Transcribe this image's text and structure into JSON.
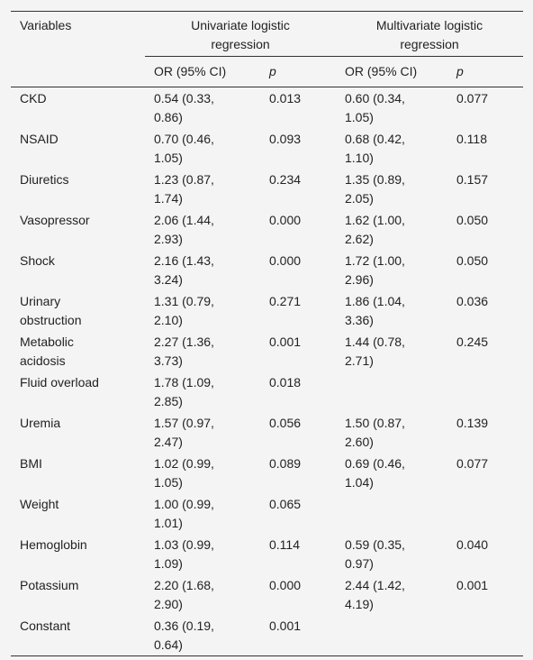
{
  "table": {
    "header": {
      "variables": "Variables",
      "univariate": "Univariate logistic regression",
      "multivariate": "Multivariate logistic regression",
      "subheaders": [
        "OR (95% CI)",
        "p",
        "OR (95% CI)",
        "p"
      ]
    },
    "rows": [
      [
        "CKD",
        "0.54 (0.33, 0.86)",
        "0.013",
        "0.60 (0.34, 1.05)",
        "0.077"
      ],
      [
        "NSAID",
        "0.70 (0.46, 1.05)",
        "0.093",
        "0.68 (0.42, 1.10)",
        "0.118"
      ],
      [
        "Diuretics",
        "1.23 (0.87, 1.74)",
        "0.234",
        "1.35 (0.89, 2.05)",
        "0.157"
      ],
      [
        "Vasopressor",
        "2.06 (1.44, 2.93)",
        "0.000",
        "1.62 (1.00, 2.62)",
        "0.050"
      ],
      [
        "Shock",
        "2.16 (1.43, 3.24)",
        "0.000",
        "1.72 (1.00, 2.96)",
        "0.050"
      ],
      [
        "Urinary obstruction",
        "1.31 (0.79, 2.10)",
        "0.271",
        "1.86 (1.04, 3.36)",
        "0.036"
      ],
      [
        "Metabolic acidosis",
        "2.27 (1.36, 3.73)",
        "0.001",
        "1.44 (0.78, 2.71)",
        "0.245"
      ],
      [
        "Fluid overload",
        "1.78 (1.09, 2.85)",
        "0.018",
        null,
        null
      ],
      [
        "Uremia",
        "1.57 (0.97, 2.47)",
        "0.056",
        "1.50 (0.87, 2.60)",
        "0.139"
      ],
      [
        "BMI",
        "1.02 (0.99, 1.05)",
        "0.089",
        "0.69 (0.46, 1.04)",
        "0.077"
      ],
      [
        "Weight",
        "1.00 (0.99, 1.01)",
        "0.065",
        null,
        null
      ],
      [
        "Hemoglobin",
        "1.03 (0.99, 1.09)",
        "0.114",
        "0.59 (0.35, 0.97)",
        "0.040"
      ],
      [
        "Potassium",
        "2.20 (1.68, 2.90)",
        "0.000",
        "2.44 (1.42, 4.19)",
        "0.001"
      ],
      [
        "Constant",
        "0.36 (0.19, 0.64)",
        "0.001",
        null,
        null
      ]
    ]
  }
}
